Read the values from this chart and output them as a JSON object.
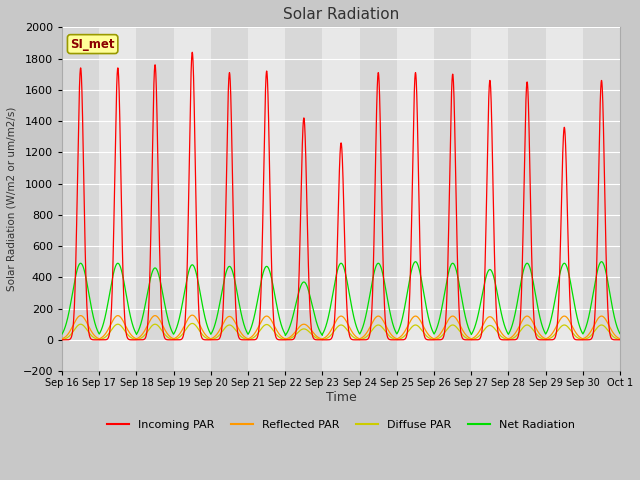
{
  "title": "Solar Radiation",
  "ylabel": "Solar Radiation (W/m2 or um/m2/s)",
  "xlabel": "Time",
  "ylim": [
    -200,
    2000
  ],
  "yticks": [
    -200,
    0,
    200,
    400,
    600,
    800,
    1000,
    1200,
    1400,
    1600,
    1800,
    2000
  ],
  "station_label": "SI_met",
  "x_tick_labels": [
    "Sep 16",
    "Sep 17",
    "Sep 18",
    "Sep 19",
    "Sep 20",
    "Sep 21",
    "Sep 22",
    "Sep 23",
    "Sep 24",
    "Sep 25",
    "Sep 26",
    "Sep 27",
    "Sep 28",
    "Sep 29",
    "Sep 30",
    "Oct 1"
  ],
  "line_colors": {
    "incoming": "#ff0000",
    "reflected": "#ff9900",
    "diffuse": "#cccc00",
    "net": "#00dd00"
  },
  "legend_labels": [
    "Incoming PAR",
    "Reflected PAR",
    "Diffuse PAR",
    "Net Radiation"
  ],
  "n_days": 15,
  "incoming_peaks": [
    1740,
    1740,
    1760,
    1840,
    1710,
    1720,
    1420,
    1260,
    1710,
    1710,
    1700,
    1660,
    1650,
    1360,
    1660
  ],
  "net_peaks": [
    490,
    490,
    460,
    480,
    470,
    470,
    370,
    490,
    490,
    500,
    490,
    450,
    490,
    490,
    500
  ],
  "net_min": -80,
  "reflected_peaks": [
    155,
    155,
    155,
    158,
    150,
    152,
    100,
    152,
    152,
    152,
    152,
    148,
    152,
    152,
    152
  ],
  "diffuse_peaks": [
    100,
    100,
    100,
    105,
    95,
    98,
    70,
    95,
    95,
    95,
    95,
    92,
    95,
    95,
    95
  ],
  "fig_size": [
    6.4,
    4.8
  ],
  "dpi": 100
}
